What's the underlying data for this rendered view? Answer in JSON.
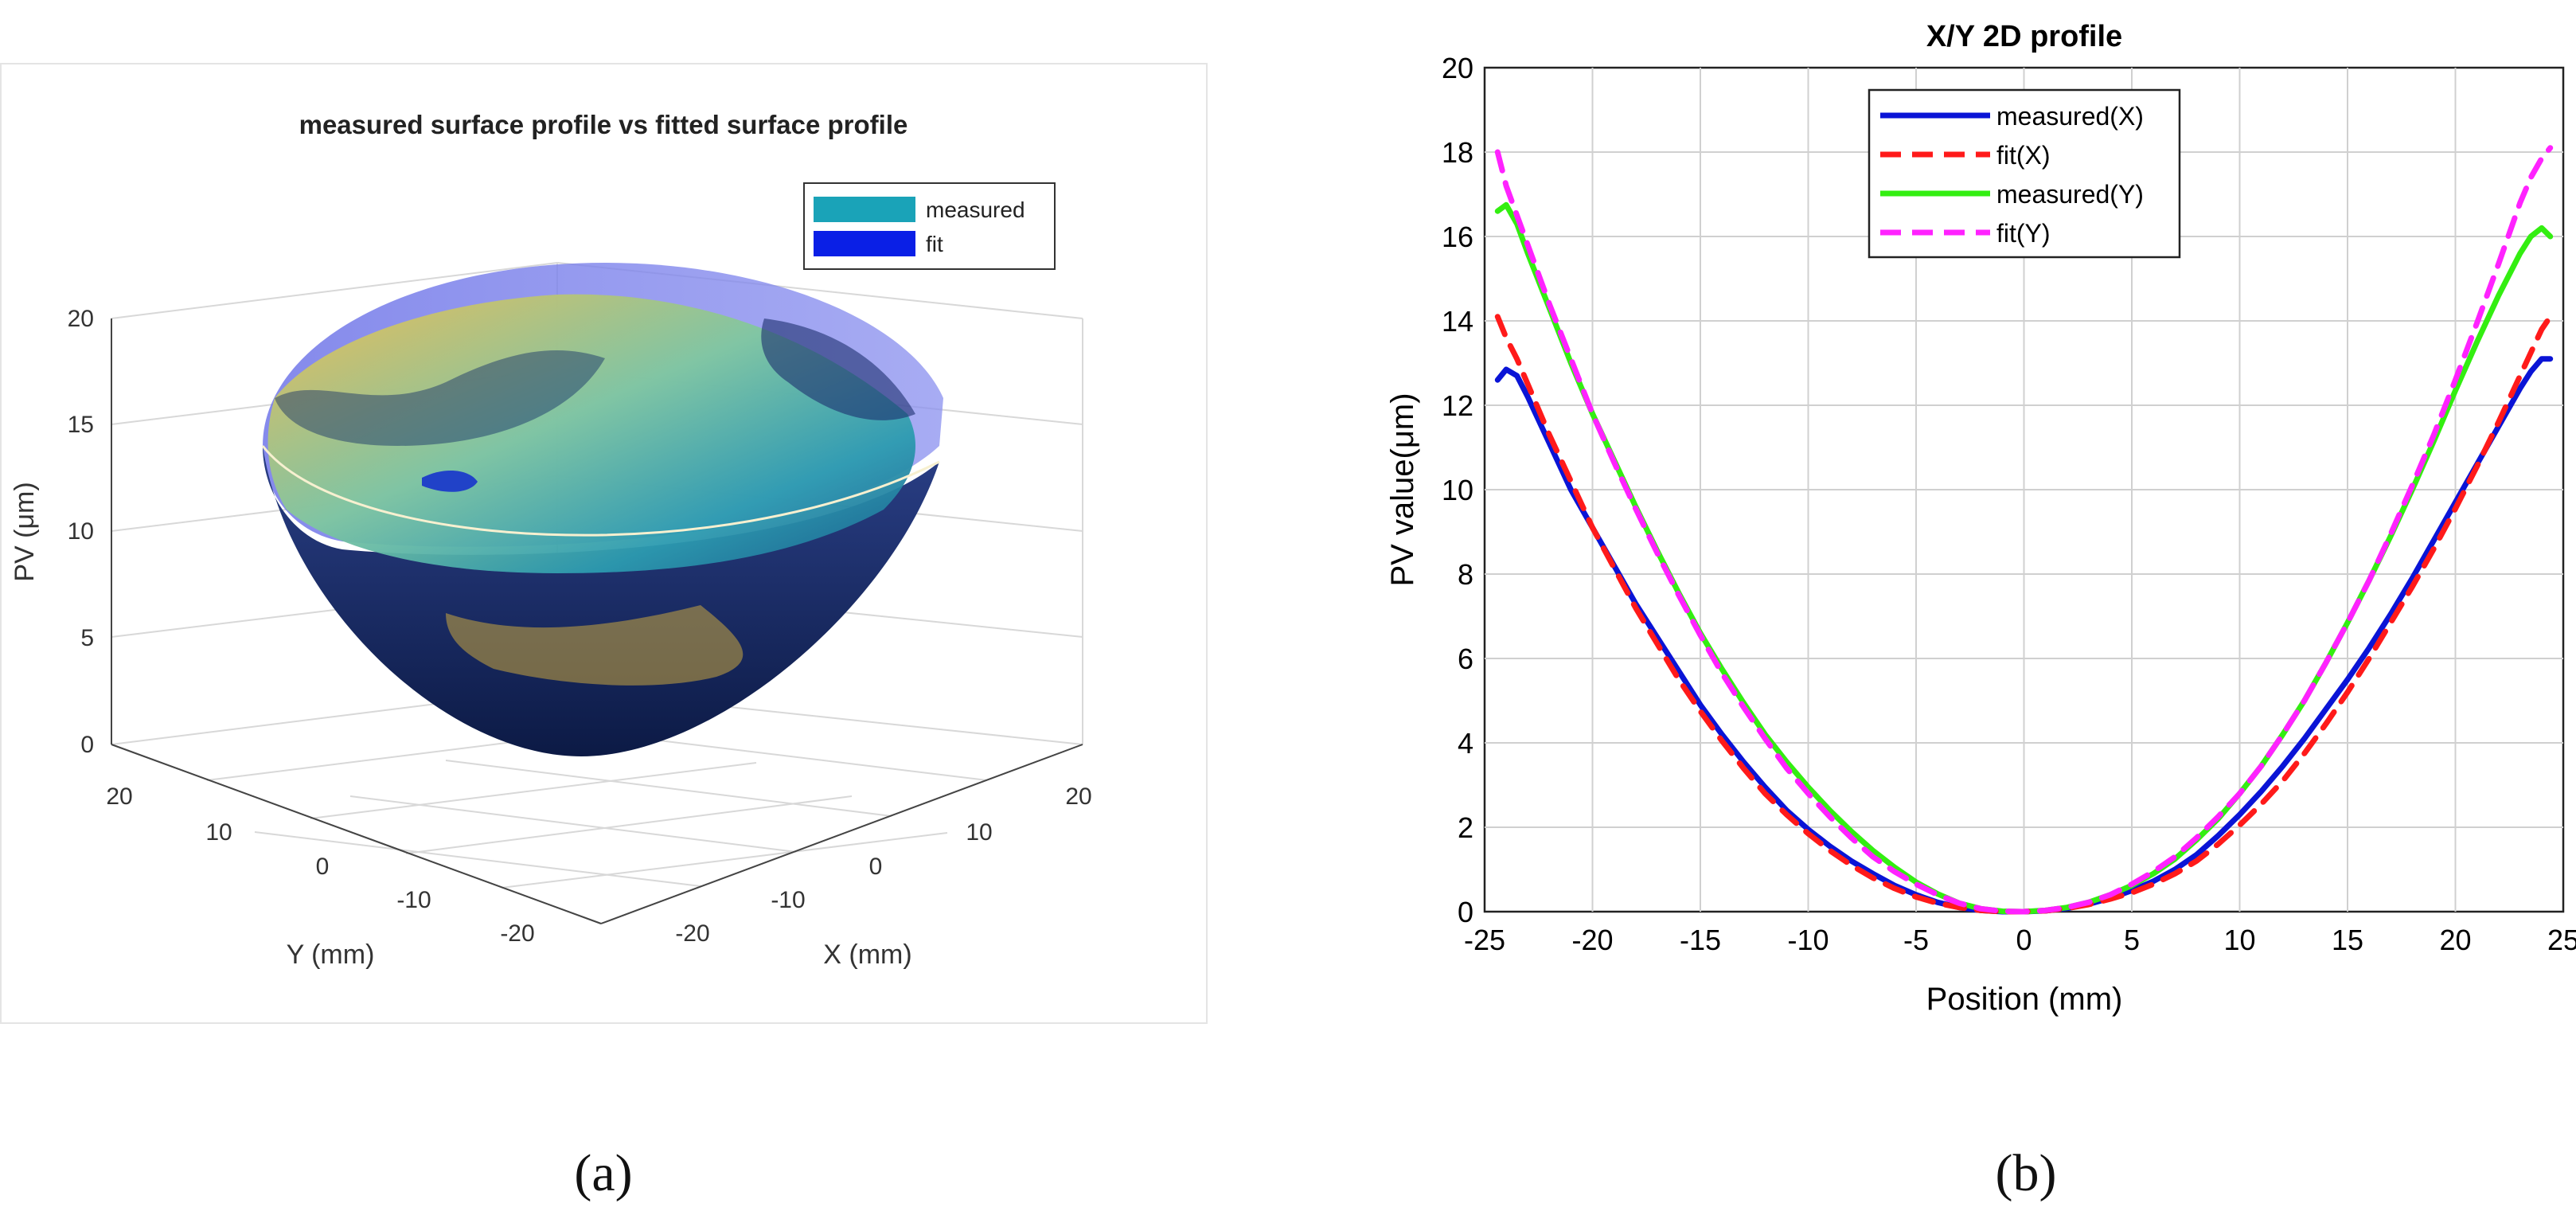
{
  "panels": {
    "a": {
      "label": "(a)"
    },
    "b": {
      "label": "(b)"
    }
  },
  "colors": {
    "measured_surface": "#1aa3b8",
    "fit_surface": "#0a1fe6",
    "measured_X": "#0a14d6",
    "fit_X": "#ff1a1a",
    "measured_Y": "#33ee11",
    "fit_Y": "#ff22ff",
    "surface_yellow": "#e6b84a",
    "surface_navy": "#0f1f55"
  },
  "chart_data": [
    {
      "type": "surface3d",
      "title": "measured surface profile vs fitted surface profile",
      "zlabel": "PV (μm)",
      "ylabel": "Y (mm)",
      "xlabel": "X (mm)",
      "zticks": [
        "0",
        "5",
        "10",
        "15",
        "20"
      ],
      "yticks": [
        "20",
        "10",
        "0",
        "-10",
        "-20"
      ],
      "xticks": [
        "-20",
        "-10",
        "0",
        "10",
        "20"
      ],
      "zlim": [
        0,
        20
      ],
      "xlim": [
        -25,
        25
      ],
      "ylim": [
        -25,
        25
      ],
      "legend": [
        {
          "name": "measured",
          "color": "#1aa3b8"
        },
        {
          "name": "fit",
          "color": "#0a1fe6"
        }
      ],
      "legend_position": "top-right"
    },
    {
      "type": "line",
      "title": "X/Y 2D profile",
      "xlabel": "Position (mm)",
      "ylabel": "PV value(μm)",
      "xlim": [
        -25,
        25
      ],
      "ylim": [
        0,
        20
      ],
      "xticks": [
        -25,
        -20,
        -15,
        -10,
        -5,
        0,
        5,
        10,
        15,
        20,
        25
      ],
      "yticks": [
        0,
        2,
        4,
        6,
        8,
        10,
        12,
        14,
        16,
        18,
        20
      ],
      "grid": true,
      "legend_position": "top-center",
      "x": [
        -24.4,
        -24,
        -23.5,
        -23,
        -22,
        -21,
        -20,
        -19,
        -18,
        -17,
        -16,
        -15,
        -14,
        -13,
        -12,
        -11,
        -10,
        -9,
        -8,
        -7,
        -6,
        -5,
        -4,
        -3,
        -2,
        -1,
        0,
        1,
        2,
        3,
        4,
        5,
        6,
        7,
        8,
        9,
        10,
        11,
        12,
        13,
        14,
        15,
        16,
        17,
        18,
        19,
        20,
        21,
        22,
        23,
        23.5,
        24,
        24.4
      ],
      "series": [
        {
          "name": "measured(X)",
          "style": "solid",
          "color": "#0a14d6",
          "values": [
            12.6,
            12.85,
            12.7,
            12.2,
            11.1,
            10.0,
            9.1,
            8.2,
            7.3,
            6.5,
            5.7,
            4.9,
            4.2,
            3.55,
            2.95,
            2.4,
            1.95,
            1.55,
            1.2,
            0.9,
            0.62,
            0.4,
            0.22,
            0.1,
            0.03,
            0.0,
            0.0,
            0.02,
            0.08,
            0.18,
            0.32,
            0.5,
            0.72,
            1.0,
            1.35,
            1.8,
            2.3,
            2.85,
            3.45,
            4.1,
            4.8,
            5.5,
            6.25,
            7.05,
            7.9,
            8.8,
            9.7,
            10.6,
            11.5,
            12.4,
            12.8,
            13.1,
            13.1
          ]
        },
        {
          "name": "fit(X)",
          "style": "dashed",
          "color": "#ff1a1a",
          "values": [
            14.1,
            13.6,
            13.1,
            12.5,
            11.3,
            10.2,
            9.1,
            8.15,
            7.2,
            6.35,
            5.5,
            4.75,
            4.05,
            3.4,
            2.8,
            2.3,
            1.85,
            1.45,
            1.1,
            0.8,
            0.55,
            0.35,
            0.2,
            0.1,
            0.03,
            0.0,
            0.0,
            0.02,
            0.08,
            0.17,
            0.3,
            0.45,
            0.65,
            0.9,
            1.2,
            1.6,
            2.05,
            2.55,
            3.1,
            3.75,
            4.45,
            5.2,
            6.0,
            6.85,
            7.7,
            8.6,
            9.55,
            10.55,
            11.6,
            12.7,
            13.25,
            13.8,
            14.1
          ]
        },
        {
          "name": "measured(Y)",
          "style": "solid",
          "color": "#33ee11",
          "values": [
            16.6,
            16.75,
            16.3,
            15.6,
            14.3,
            13.0,
            11.8,
            10.7,
            9.6,
            8.55,
            7.55,
            6.6,
            5.75,
            4.95,
            4.2,
            3.55,
            2.95,
            2.4,
            1.9,
            1.45,
            1.05,
            0.7,
            0.42,
            0.2,
            0.07,
            0.01,
            0.0,
            0.03,
            0.1,
            0.22,
            0.4,
            0.62,
            0.9,
            1.25,
            1.7,
            2.2,
            2.8,
            3.45,
            4.2,
            5.0,
            5.9,
            6.85,
            7.85,
            8.9,
            10.0,
            11.15,
            12.35,
            13.5,
            14.6,
            15.6,
            16.0,
            16.2,
            16.0
          ]
        },
        {
          "name": "fit(Y)",
          "style": "dashed",
          "color": "#ff22ff",
          "values": [
            18.0,
            17.2,
            16.5,
            15.8,
            14.4,
            13.1,
            11.8,
            10.65,
            9.55,
            8.5,
            7.5,
            6.55,
            5.65,
            4.85,
            4.1,
            3.4,
            2.8,
            2.25,
            1.75,
            1.3,
            0.95,
            0.65,
            0.4,
            0.2,
            0.07,
            0.01,
            0.0,
            0.03,
            0.1,
            0.22,
            0.4,
            0.65,
            0.95,
            1.3,
            1.75,
            2.25,
            2.8,
            3.45,
            4.2,
            5.0,
            5.9,
            6.85,
            7.85,
            8.95,
            10.1,
            11.3,
            12.6,
            13.95,
            15.35,
            16.8,
            17.4,
            17.85,
            18.1
          ]
        }
      ]
    }
  ]
}
